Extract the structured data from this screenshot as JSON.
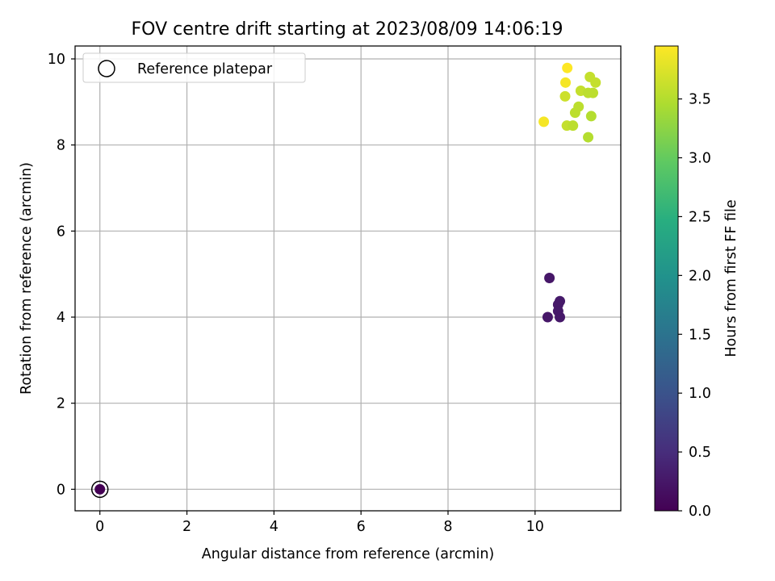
{
  "chart_data": {
    "type": "scatter",
    "title": "FOV centre drift starting at 2023/08/09 14:06:19",
    "xlabel": "Angular distance from reference (arcmin)",
    "ylabel": "Rotation from reference (arcmin)",
    "xlim": [
      -0.57,
      11.97
    ],
    "ylim": [
      -0.5,
      10.3
    ],
    "x_ticks": [
      0,
      2,
      4,
      6,
      8,
      10
    ],
    "y_ticks": [
      0,
      2,
      4,
      6,
      8,
      10
    ],
    "x_tick_labels": [
      "0",
      "2",
      "4",
      "6",
      "8",
      "10"
    ],
    "y_tick_labels": [
      "0",
      "2",
      "4",
      "6",
      "8",
      "10"
    ],
    "grid": true,
    "legend": {
      "placement": "upper-left",
      "entries": [
        "Reference platepar"
      ]
    },
    "colorbar": {
      "label": "Hours from first FF file",
      "range": [
        0.0,
        3.95
      ],
      "colormap": "viridis",
      "ticks": [
        0.0,
        0.5,
        1.0,
        1.5,
        2.0,
        2.5,
        3.0,
        3.5
      ],
      "tick_labels": [
        "0.0",
        "0.5",
        "1.0",
        "1.5",
        "2.0",
        "2.5",
        "3.0",
        "3.5"
      ]
    },
    "series": [
      {
        "name": "Reference platepar",
        "marker": "hollow-circle",
        "points": [
          {
            "x": 0.0,
            "y": 0.0
          }
        ]
      },
      {
        "marker": "filled-circle",
        "points": [
          {
            "x": 0.0,
            "y": 0.0,
            "c": 0.0
          },
          {
            "x": 10.33,
            "y": 4.91,
            "c": 0.25
          },
          {
            "x": 10.57,
            "y": 4.37,
            "c": 0.28
          },
          {
            "x": 10.53,
            "y": 4.29,
            "c": 0.27
          },
          {
            "x": 10.53,
            "y": 4.14,
            "c": 0.27
          },
          {
            "x": 10.57,
            "y": 4.0,
            "c": 0.26
          },
          {
            "x": 10.29,
            "y": 4.0,
            "c": 0.25
          },
          {
            "x": 10.74,
            "y": 9.79,
            "c": 3.95
          },
          {
            "x": 10.7,
            "y": 9.45,
            "c": 3.9
          },
          {
            "x": 11.26,
            "y": 9.58,
            "c": 3.6
          },
          {
            "x": 11.39,
            "y": 9.45,
            "c": 3.6
          },
          {
            "x": 11.05,
            "y": 9.26,
            "c": 3.6
          },
          {
            "x": 11.22,
            "y": 9.21,
            "c": 3.55
          },
          {
            "x": 11.33,
            "y": 9.21,
            "c": 3.55
          },
          {
            "x": 10.69,
            "y": 9.13,
            "c": 3.65
          },
          {
            "x": 11.0,
            "y": 8.89,
            "c": 3.55
          },
          {
            "x": 10.92,
            "y": 8.75,
            "c": 3.55
          },
          {
            "x": 11.29,
            "y": 8.67,
            "c": 3.5
          },
          {
            "x": 10.2,
            "y": 8.54,
            "c": 3.9
          },
          {
            "x": 10.73,
            "y": 8.45,
            "c": 3.6
          },
          {
            "x": 10.87,
            "y": 8.45,
            "c": 3.55
          },
          {
            "x": 11.22,
            "y": 8.18,
            "c": 3.5
          }
        ]
      }
    ]
  }
}
